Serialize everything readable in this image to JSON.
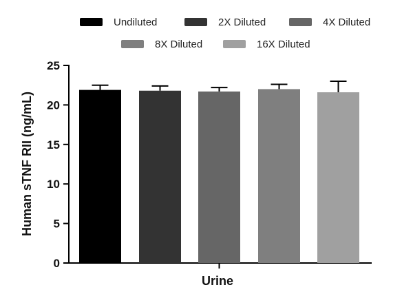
{
  "chart_data": {
    "type": "bar",
    "title": "",
    "xlabel": "Urine",
    "ylabel": "Human sTNF RII (ng/mL)",
    "ylim": [
      0,
      25
    ],
    "yticks": [
      0,
      5,
      10,
      15,
      20,
      25
    ],
    "categories": [
      "Urine"
    ],
    "grid": false,
    "legend_position": "top",
    "series": [
      {
        "name": "Undiluted",
        "values": [
          21.9
        ],
        "error": [
          0.6
        ],
        "color": "#000000"
      },
      {
        "name": "2X Diluted",
        "values": [
          21.8
        ],
        "error": [
          0.6
        ],
        "color": "#333333"
      },
      {
        "name": "4X Diluted",
        "values": [
          21.7
        ],
        "error": [
          0.5
        ],
        "color": "#666666"
      },
      {
        "name": "8X Diluted",
        "values": [
          22.0
        ],
        "error": [
          0.6
        ],
        "color": "#7f7f7f"
      },
      {
        "name": "16X Diluted",
        "values": [
          21.6
        ],
        "error": [
          1.4
        ],
        "color": "#a0a0a0"
      }
    ]
  }
}
